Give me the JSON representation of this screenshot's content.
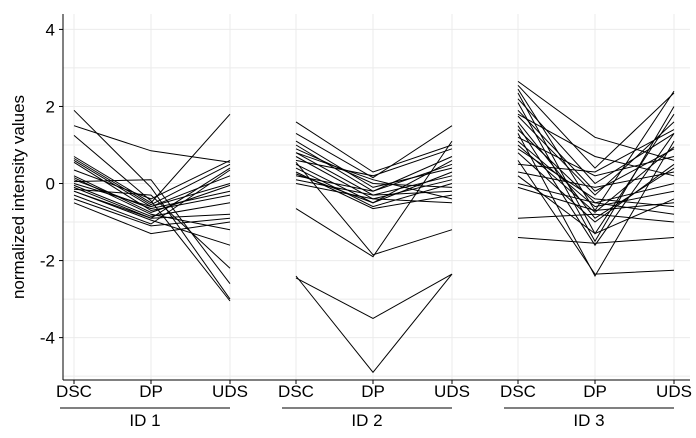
{
  "chart_data": {
    "type": "line",
    "ylabel": "normalized intensity values",
    "ylim": [
      -5.1,
      4.4
    ],
    "yticks": [
      4,
      2,
      0,
      -2,
      -4
    ],
    "grid": true,
    "legend": "none",
    "line_color": "#000000",
    "grid_color": "#ebebeb",
    "panels": [
      {
        "label": "ID 1",
        "categories": [
          "DSC",
          "DP",
          "UDS"
        ],
        "series": [
          [
            1.9,
            -0.1,
            -3.0
          ],
          [
            1.5,
            0.85,
            0.55
          ],
          [
            1.25,
            -0.45,
            -3.05
          ],
          [
            0.7,
            -0.5,
            1.8
          ],
          [
            0.65,
            -0.55,
            0.5
          ],
          [
            0.6,
            -0.6,
            0.2
          ],
          [
            0.55,
            -0.7,
            -0.3
          ],
          [
            0.35,
            -0.4,
            0.6
          ],
          [
            0.2,
            -0.75,
            -0.05
          ],
          [
            0.15,
            -0.8,
            -1.2
          ],
          [
            0.05,
            0.1,
            -2.6
          ],
          [
            0.0,
            -0.6,
            0.0
          ],
          [
            -0.05,
            -0.85,
            -0.5
          ],
          [
            -0.1,
            -0.9,
            -0.8
          ],
          [
            -0.15,
            -0.3,
            -2.2
          ],
          [
            -0.2,
            -0.95,
            -1.6
          ],
          [
            -0.3,
            -1.05,
            0.35
          ],
          [
            -0.4,
            -1.1,
            -0.9
          ],
          [
            -0.5,
            -1.3,
            -1.0
          ],
          [
            -0.2,
            -0.9,
            0.4
          ],
          [
            0.1,
            -0.65,
            -0.2
          ]
        ]
      },
      {
        "label": "ID 2",
        "categories": [
          "DSC",
          "DP",
          "UDS"
        ],
        "series": [
          [
            1.6,
            0.3,
            1.0
          ],
          [
            1.3,
            0.15,
            1.5
          ],
          [
            1.1,
            -0.1,
            0.4
          ],
          [
            1.0,
            -0.2,
            0.7
          ],
          [
            0.9,
            0.0,
            -0.1
          ],
          [
            0.8,
            -0.3,
            0.2
          ],
          [
            0.7,
            -0.4,
            -0.5
          ],
          [
            0.6,
            0.2,
            0.9
          ],
          [
            0.5,
            -0.5,
            0.3
          ],
          [
            0.4,
            -0.6,
            0.0
          ],
          [
            0.3,
            -0.65,
            -0.3
          ],
          [
            0.2,
            -0.2,
            0.5
          ],
          [
            0.1,
            -0.3,
            -0.2
          ],
          [
            0.0,
            -0.4,
            0.1
          ],
          [
            -0.65,
            -1.9,
            1.1
          ],
          [
            0.55,
            -1.85,
            -1.2
          ],
          [
            -2.45,
            -3.5,
            -2.35
          ],
          [
            -2.4,
            -4.9,
            -2.35
          ],
          [
            0.8,
            0.1,
            -0.4
          ],
          [
            0.25,
            -0.5,
            0.6
          ]
        ]
      },
      {
        "label": "ID 3",
        "categories": [
          "DSC",
          "DP",
          "UDS"
        ],
        "series": [
          [
            2.65,
            1.2,
            0.6
          ],
          [
            2.55,
            0.4,
            2.35
          ],
          [
            2.45,
            -0.7,
            2.4
          ],
          [
            2.35,
            -1.3,
            1.8
          ],
          [
            2.2,
            0.0,
            1.3
          ],
          [
            2.1,
            -1.5,
            2.0
          ],
          [
            1.9,
            -0.2,
            0.9
          ],
          [
            1.8,
            0.7,
            0.2
          ],
          [
            1.75,
            -0.3,
            1.6
          ],
          [
            1.6,
            -0.9,
            0.4
          ],
          [
            1.5,
            -1.6,
            1.3
          ],
          [
            1.4,
            -0.5,
            0.0
          ],
          [
            1.3,
            -2.4,
            1.1
          ],
          [
            1.2,
            0.2,
            0.7
          ],
          [
            1.1,
            -0.6,
            -0.2
          ],
          [
            0.9,
            -0.4,
            -0.6
          ],
          [
            0.8,
            -1.0,
            0.5
          ],
          [
            0.6,
            -2.35,
            -2.25
          ],
          [
            0.3,
            -0.1,
            0.3
          ],
          [
            0.2,
            -1.3,
            -0.4
          ],
          [
            0.0,
            -0.5,
            -0.8
          ],
          [
            -0.1,
            -0.7,
            -0.5
          ],
          [
            -0.9,
            -0.8,
            -1.0
          ],
          [
            -1.4,
            -1.55,
            -1.4
          ],
          [
            1.0,
            -0.75,
            0.95
          ],
          [
            0.5,
            0.3,
            1.4
          ]
        ]
      }
    ]
  }
}
